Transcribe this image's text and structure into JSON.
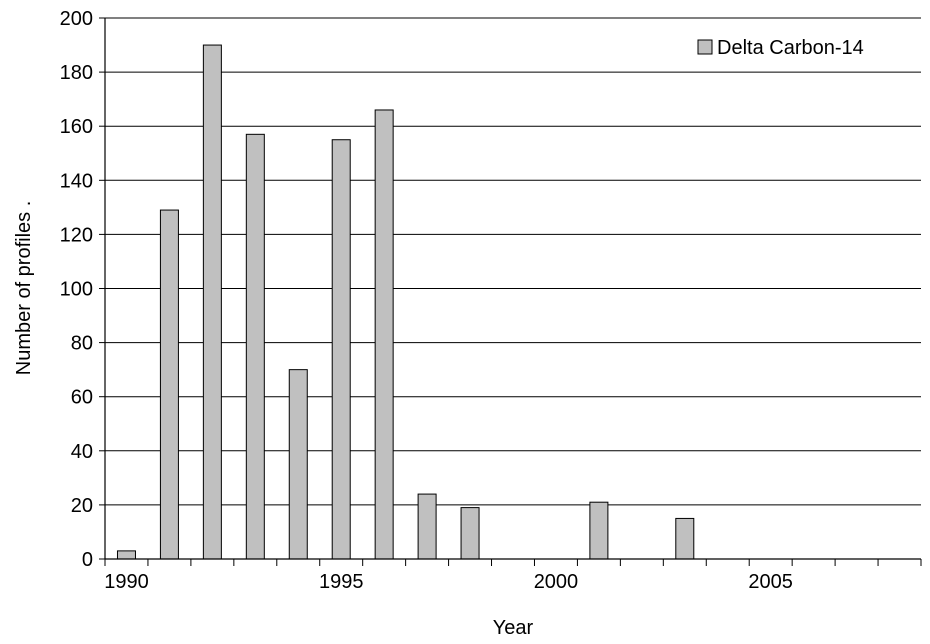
{
  "chart_data": {
    "type": "bar",
    "xlabel": "Year",
    "ylabel": "Number of profiles .",
    "xlim": [
      1989.5,
      2008.5
    ],
    "ylim": [
      0,
      200
    ],
    "y_ticks": [
      0,
      20,
      40,
      60,
      80,
      100,
      120,
      140,
      160,
      180,
      200
    ],
    "x_tick_labels": [
      1990,
      1995,
      2000,
      2005
    ],
    "x_minor_ticks": [
      1990,
      1991,
      1992,
      1993,
      1994,
      1995,
      1996,
      1997,
      1998,
      1999,
      2000,
      2001,
      2002,
      2003,
      2004,
      2005,
      2006,
      2007,
      2008
    ],
    "grid": "horizontal",
    "legend_position": "top-right",
    "bar_color": "#c0c0c0",
    "series": [
      {
        "name": "Delta Carbon-14",
        "x": [
          1990,
          1991,
          1992,
          1993,
          1994,
          1995,
          1996,
          1997,
          1998,
          2001,
          2003
        ],
        "values": [
          3,
          129,
          190,
          157,
          70,
          155,
          166,
          24,
          19,
          21,
          15
        ]
      }
    ]
  }
}
